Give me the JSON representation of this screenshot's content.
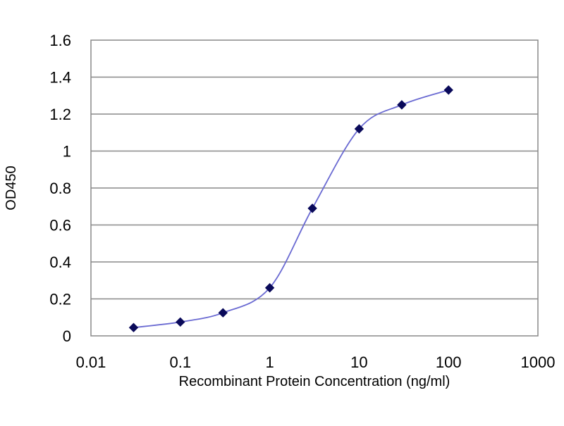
{
  "chart_data": {
    "type": "line",
    "title": "",
    "xlabel": "Recombinant Protein Concentration (ng/ml)",
    "ylabel": "OD450",
    "x_scale": "log",
    "xlim": [
      0.01,
      1000
    ],
    "ylim": [
      0,
      1.6
    ],
    "x_ticks": [
      "0.01",
      "0.1",
      "1",
      "10",
      "100",
      "1000"
    ],
    "x_tick_values": [
      0.01,
      0.1,
      1,
      10,
      100,
      1000
    ],
    "y_ticks": [
      "0",
      "0.2",
      "0.4",
      "0.6",
      "0.8",
      "1",
      "1.2",
      "1.4",
      "1.6"
    ],
    "y_tick_values": [
      0,
      0.2,
      0.4,
      0.6,
      0.8,
      1,
      1.2,
      1.4,
      1.6
    ],
    "grid": "horizontal",
    "legend": "none",
    "series": [
      {
        "x": [
          0.03,
          0.1,
          0.3,
          1,
          3,
          10,
          30,
          100
        ],
        "y": [
          0.045,
          0.075,
          0.125,
          0.26,
          0.69,
          1.12,
          1.25,
          1.33
        ]
      }
    ],
    "colors": {
      "line": "#6a6ad2",
      "marker": "#0a0a5a",
      "gridline": "#888888",
      "plot_border": "#888888"
    }
  }
}
